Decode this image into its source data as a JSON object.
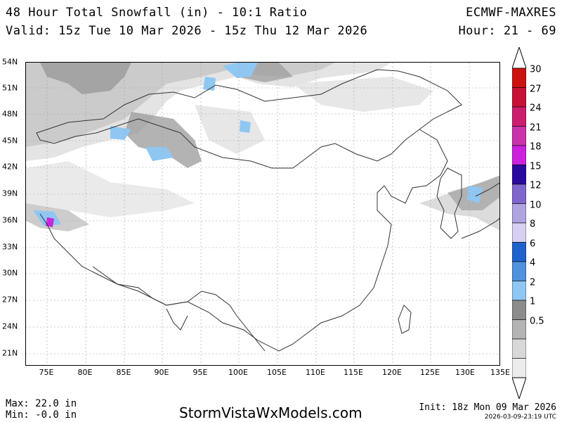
{
  "header": {
    "title": "48 Hour Total Snowfall (in) - 10:1 Ratio",
    "valid": "Valid: 15z Tue 10 Mar 2026 - 15z Thu 12 Mar 2026",
    "model": "ECMWF-MAXRES",
    "hours": "Hour: 21 - 69"
  },
  "map": {
    "lat_labels": [
      "54N",
      "51N",
      "48N",
      "45N",
      "42N",
      "39N",
      "36N",
      "33N",
      "30N",
      "27N",
      "24N",
      "21N"
    ],
    "lon_labels": [
      "75E",
      "80E",
      "85E",
      "90E",
      "95E",
      "100E",
      "105E",
      "110E",
      "115E",
      "120E",
      "125E",
      "130E",
      "135E"
    ]
  },
  "colorbar": {
    "levels": [
      {
        "label": "30",
        "color": "#cc1111"
      },
      {
        "label": "27",
        "color": "#c81136"
      },
      {
        "label": "24",
        "color": "#cc1e6e"
      },
      {
        "label": "21",
        "color": "#cc33aa"
      },
      {
        "label": "18",
        "color": "#cc22dd"
      },
      {
        "label": "15",
        "color": "#2a0a9e"
      },
      {
        "label": "12",
        "color": "#8066cc"
      },
      {
        "label": "10",
        "color": "#b0a4e0"
      },
      {
        "label": "8",
        "color": "#d8d0f2"
      },
      {
        "label": "6",
        "color": "#1e63cc"
      },
      {
        "label": "4",
        "color": "#4f92dd"
      },
      {
        "label": "2",
        "color": "#8fc7f2"
      },
      {
        "label": "1",
        "color": "#8c8c8c"
      },
      {
        "label": "0.5",
        "color": "#b4b4b4"
      },
      {
        "label": "",
        "color": "#d8d8d8"
      },
      {
        "label": "",
        "color": "#ececec"
      }
    ]
  },
  "footer": {
    "max": "Max: 22.0 in",
    "min": "Min: -0.0 in",
    "site": "StormVistaWxModels.com",
    "init": "Init: 18z Mon 09 Mar 2026",
    "created": "2026-03-09-23:19 UTC"
  }
}
